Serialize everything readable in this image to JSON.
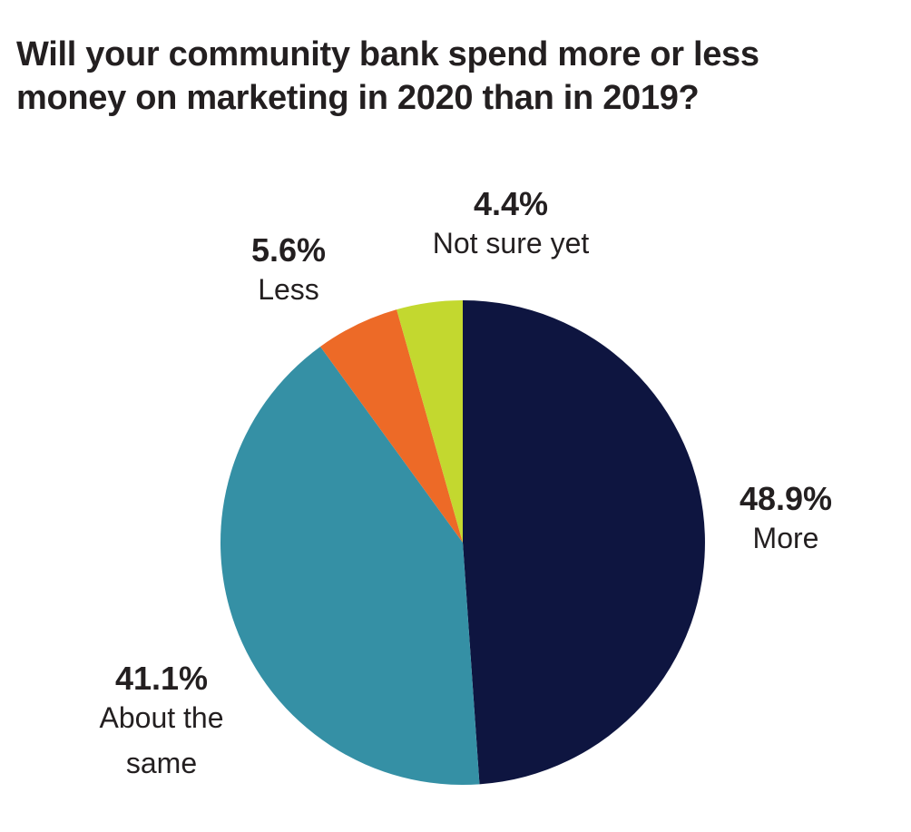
{
  "chart_data": {
    "type": "pie",
    "title_lines": [
      "Will your community bank spend more or less",
      "money on marketing in 2020 than in 2019?"
    ],
    "start_angle_deg": 0,
    "direction": "clockwise",
    "slices": [
      {
        "id": "more",
        "value": 48.9,
        "percent_label": "48.9%",
        "label_lines": [
          "More"
        ],
        "color": "#0e1540"
      },
      {
        "id": "about-the-same",
        "value": 41.1,
        "percent_label": "41.1%",
        "label_lines": [
          "About the",
          "same"
        ],
        "color": "#3590a5"
      },
      {
        "id": "less",
        "value": 5.6,
        "percent_label": "5.6%",
        "label_lines": [
          "Less"
        ],
        "color": "#ed6a27"
      },
      {
        "id": "not-sure-yet",
        "value": 4.4,
        "percent_label": "4.4%",
        "label_lines": [
          "Not sure yet"
        ],
        "color": "#c3d82f"
      }
    ]
  }
}
